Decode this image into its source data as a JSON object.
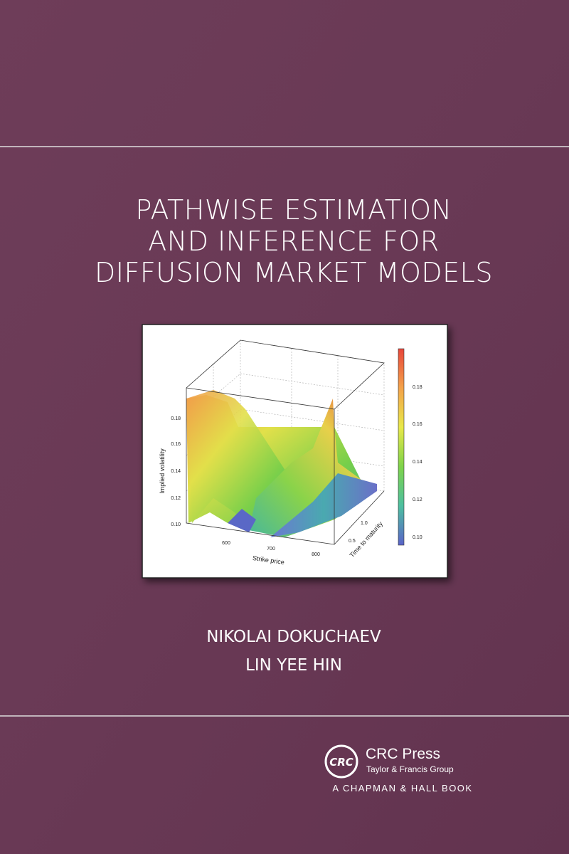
{
  "cover": {
    "title": [
      "PATHWISE ESTIMATION",
      "AND INFERENCE FOR",
      "DIFFUSION MARKET MODELS"
    ],
    "figure": {
      "z_label": "Implied volatility",
      "x_label": "Strike price",
      "y_label": "Time to maturity",
      "z_ticks": [
        "0.10",
        "0.12",
        "0.14",
        "0.16",
        "0.18"
      ],
      "x_ticks": [
        "600",
        "700",
        "800"
      ],
      "y_ticks": [
        "0.5",
        "1.0"
      ],
      "colorbar_ticks": [
        "0.10",
        "0.12",
        "0.14",
        "0.16",
        "0.18"
      ]
    },
    "authors": [
      "NIKOLAI DOKUCHAEV",
      "LIN YEE HIN"
    ],
    "publisher": {
      "logo": "CRC",
      "name": "CRC Press",
      "group": "Taylor & Francis Group",
      "imprint": "A CHAPMAN & HALL BOOK"
    }
  }
}
